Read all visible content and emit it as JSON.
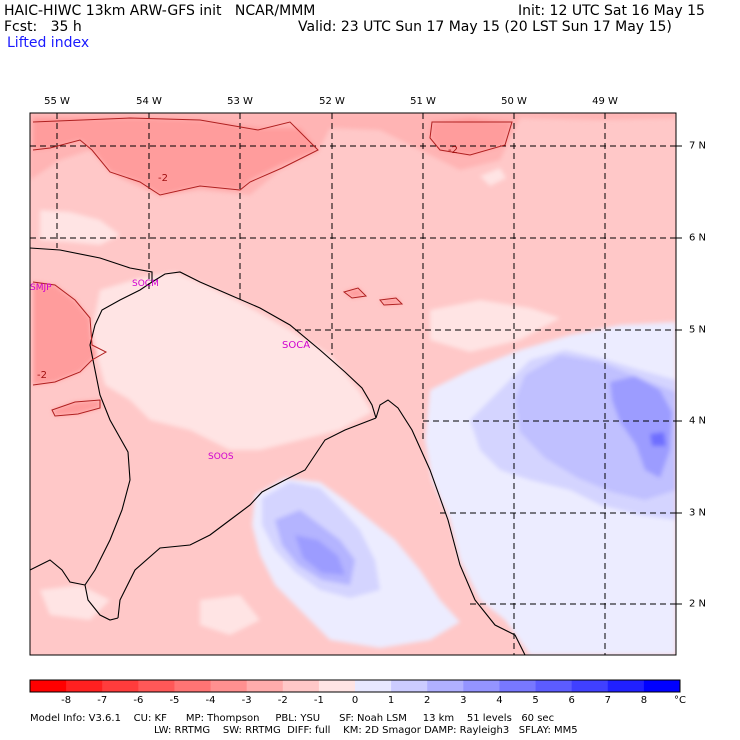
{
  "header": {
    "title": "HAIC-HIWC 13km ARW-GFS init   NCAR/MMM",
    "forecast": "Fcst:   35 h",
    "field": "Lifted index",
    "init": "Init: 12 UTC Sat 16 May 15",
    "valid": "Valid: 23 UTC Sun 17 May 15 (20 LST Sun 17 May 15)"
  },
  "map": {
    "lon_labels": [
      "55 W",
      "54 W",
      "53 W",
      "52 W",
      "51 W",
      "50 W",
      "49 W"
    ],
    "lat_labels": [
      "7 N",
      "6 N",
      "5 N",
      "4 N",
      "3 N",
      "2 N"
    ],
    "station_labels": [
      "SMJP",
      "SOCM",
      "SOCA",
      "SOOS"
    ],
    "contour_labels": [
      "-2",
      "-2",
      "-2"
    ]
  },
  "colorbar": {
    "labels": [
      "-8",
      "-7",
      "-6",
      "-5",
      "-4",
      "-3",
      "-2",
      "-1",
      "0",
      "1",
      "2",
      "3",
      "4",
      "5",
      "6",
      "7",
      "8"
    ],
    "unit": "°C",
    "colors": [
      "#ff0000",
      "#ff2020",
      "#ff3c3c",
      "#ff5858",
      "#ff7474",
      "#ff9090",
      "#ffacac",
      "#ffc8c8",
      "#ffe4e4",
      "#e8e8ff",
      "#ccccff",
      "#b0b0ff",
      "#9494ff",
      "#7878ff",
      "#5c5cff",
      "#4040ff",
      "#2020ff",
      "#0000ff"
    ]
  },
  "footer": {
    "line1": "Model Info: V3.6.1    CU: KF      MP: Thompson     PBL: YSU      SF: Noah LSM     13 km    51 levels   60 sec",
    "line2": "LW: RRTMG    SW: RRTMG  DIFF: full    KM: 2D Smagor DAMP: Rayleigh3   SFLAY: MM5"
  }
}
